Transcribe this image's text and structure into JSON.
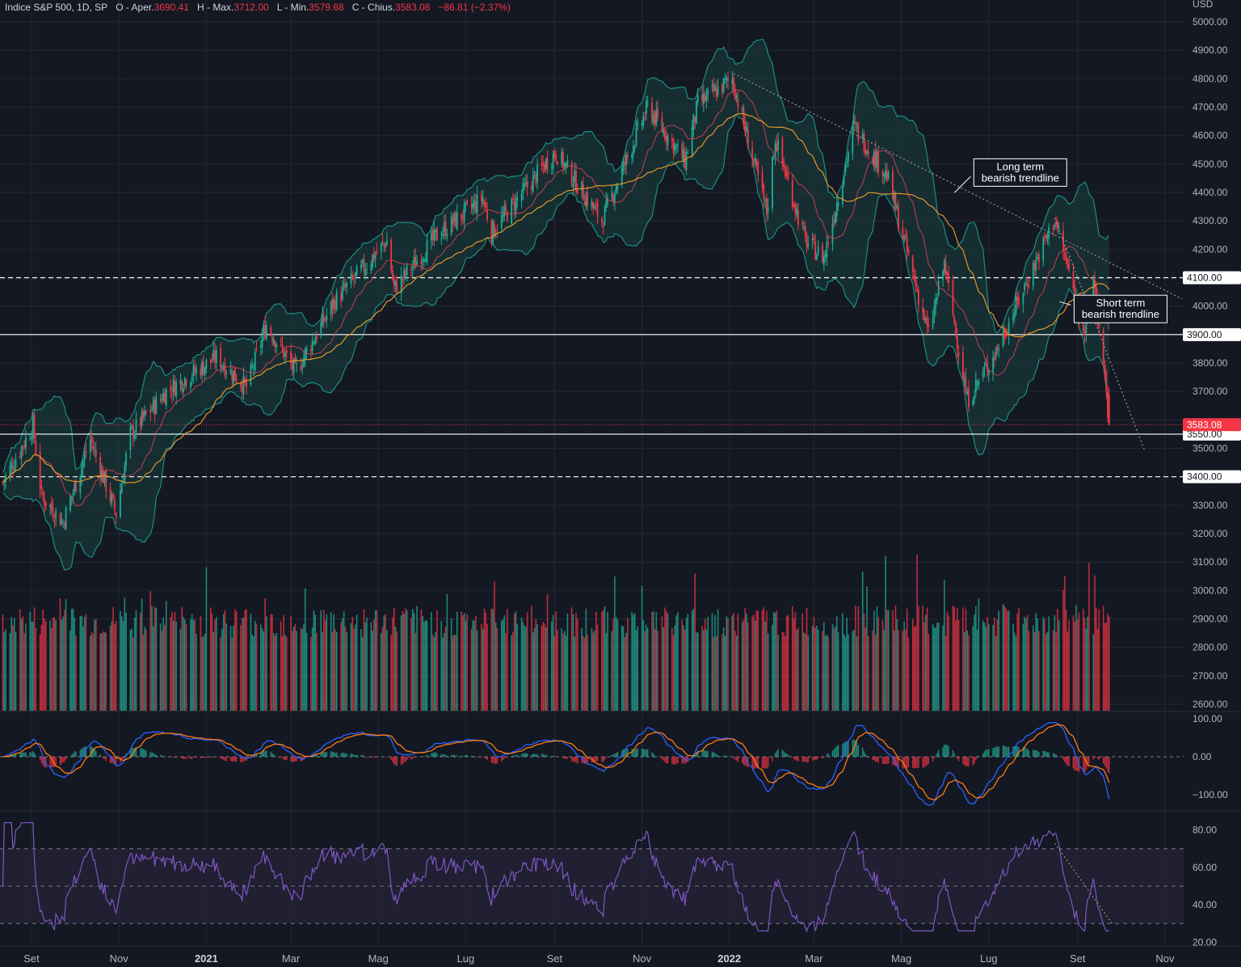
{
  "header": {
    "instrument": "Indice S&P 500, 1D, SP",
    "open_label": "O - Aper.",
    "open_value": "3690.41",
    "high_label": "H - Max.",
    "high_value": "3712.00",
    "low_label": "L - Min.",
    "low_value": "3579.68",
    "close_label": "C - Chius.",
    "close_value": "3583.08",
    "change": "−86.81 (−2.37%)"
  },
  "colors": {
    "background": "#141823",
    "grid": "#232733",
    "axis_text": "#b2b5be",
    "up": "#22ab94",
    "down": "#f23645",
    "band": "#1a8f7e",
    "band_fill": "#18403f",
    "ma_fast": "#e0434f",
    "ma_slow": "#e2962a",
    "macd": "#2962ff",
    "signal": "#ff7a12",
    "rsi": "#7e57c2",
    "rsi_band": "#2b2640",
    "trendline": "#9598a1"
  },
  "chart_data": {
    "type": "candlestick",
    "price_axis": {
      "unit": "USD",
      "ticks": [
        "5000.00",
        "4900.00",
        "4800.00",
        "4700.00",
        "4600.00",
        "4500.00",
        "4400.00",
        "4300.00",
        "4200.00",
        "4100.00",
        "4000.00",
        "3900.00",
        "3800.00",
        "3700.00",
        "3600.00",
        "3500.00",
        "3400.00",
        "3300.00",
        "3200.00",
        "3100.00",
        "3000.00",
        "2900.00",
        "2800.00",
        "2700.00",
        "2600.00"
      ],
      "range": [
        2570,
        5045
      ]
    },
    "time_axis": {
      "labels": [
        "Set",
        "Nov",
        "2021",
        "Mar",
        "Mag",
        "Lug",
        "Set",
        "Nov",
        "2022",
        "Mar",
        "Mag",
        "Lug",
        "Set",
        "Nov"
      ],
      "label_dates": [
        "2020-09-01",
        "2020-11-01",
        "2021-01-01",
        "2021-03-01",
        "2021-05-01",
        "2021-07-01",
        "2021-09-01",
        "2021-11-01",
        "2022-01-01",
        "2022-03-01",
        "2022-05-01",
        "2022-07-01",
        "2022-09-01",
        "2022-11-01"
      ],
      "range": [
        "2020-08-10",
        "2022-11-14"
      ],
      "data_end": "2022-09-23"
    },
    "price_path": [
      {
        "date": "2020-08-12",
        "close": 3380
      },
      {
        "date": "2020-09-02",
        "close": 3580
      },
      {
        "date": "2020-09-08",
        "close": 3330
      },
      {
        "date": "2020-09-23",
        "close": 3240
      },
      {
        "date": "2020-10-12",
        "close": 3530
      },
      {
        "date": "2020-10-30",
        "close": 3270
      },
      {
        "date": "2020-11-09",
        "close": 3550
      },
      {
        "date": "2020-12-04",
        "close": 3700
      },
      {
        "date": "2021-01-08",
        "close": 3820
      },
      {
        "date": "2021-01-29",
        "close": 3715
      },
      {
        "date": "2021-02-12",
        "close": 3935
      },
      {
        "date": "2021-03-04",
        "close": 3770
      },
      {
        "date": "2021-04-01",
        "close": 4020
      },
      {
        "date": "2021-05-07",
        "close": 4230
      },
      {
        "date": "2021-05-12",
        "close": 4060
      },
      {
        "date": "2021-06-11",
        "close": 4250
      },
      {
        "date": "2021-07-13",
        "close": 4380
      },
      {
        "date": "2021-07-19",
        "close": 4260
      },
      {
        "date": "2021-08-27",
        "close": 4510
      },
      {
        "date": "2021-09-02",
        "close": 4540
      },
      {
        "date": "2021-10-04",
        "close": 4300
      },
      {
        "date": "2021-11-05",
        "close": 4700
      },
      {
        "date": "2021-12-01",
        "close": 4510
      },
      {
        "date": "2021-12-10",
        "close": 4710
      },
      {
        "date": "2022-01-03",
        "close": 4800
      },
      {
        "date": "2022-01-27",
        "close": 4330
      },
      {
        "date": "2022-02-02",
        "close": 4590
      },
      {
        "date": "2022-02-23",
        "close": 4230
      },
      {
        "date": "2022-03-08",
        "close": 4170
      },
      {
        "date": "2022-03-29",
        "close": 4630
      },
      {
        "date": "2022-04-21",
        "close": 4460
      },
      {
        "date": "2022-05-20",
        "close": 3900
      },
      {
        "date": "2022-05-31",
        "close": 4150
      },
      {
        "date": "2022-06-16",
        "close": 3670
      },
      {
        "date": "2022-07-05",
        "close": 3830
      },
      {
        "date": "2022-08-16",
        "close": 4305
      },
      {
        "date": "2022-09-06",
        "close": 3910
      },
      {
        "date": "2022-09-12",
        "close": 4110
      },
      {
        "date": "2022-09-23",
        "close": 3583
      }
    ],
    "horizontal_levels": [
      {
        "label": "4100.00",
        "value": 4100,
        "style": "dashed"
      },
      {
        "label": "3900.00",
        "value": 3900,
        "style": "solid"
      },
      {
        "label": "3550.00",
        "value": 3550,
        "style": "solid"
      },
      {
        "label": "3400.00",
        "value": 3400,
        "style": "dashed"
      }
    ],
    "last_price": {
      "label": "3583.08",
      "value": 3583.08
    },
    "annotations": [
      {
        "text": [
          "Long term",
          "bearish trendline"
        ],
        "date": "2022-07-23",
        "value": 4470
      },
      {
        "text": [
          "Short term",
          "bearish trendline"
        ],
        "date": "2022-10-01",
        "value": 3990
      }
    ],
    "trendlines": [
      {
        "name": "long-term",
        "from": {
          "date": "2022-01-04",
          "value": 4818
        },
        "to": {
          "date": "2022-11-13",
          "value": 4025
        }
      },
      {
        "name": "short-term",
        "from": {
          "date": "2022-08-16",
          "value": 4310
        },
        "to": {
          "date": "2022-10-18",
          "value": 3490
        }
      }
    ],
    "volume_panel": {
      "ticks": []
    },
    "macd_panel": {
      "ticks": [
        "100.00",
        "0.00",
        "−100.00"
      ],
      "range": [
        -140,
        140
      ]
    },
    "rsi_panel": {
      "ticks": [
        "80.00",
        "60.00",
        "40.00",
        "20.00"
      ],
      "range": [
        15,
        85
      ],
      "bands": [
        70,
        50,
        30
      ]
    }
  }
}
